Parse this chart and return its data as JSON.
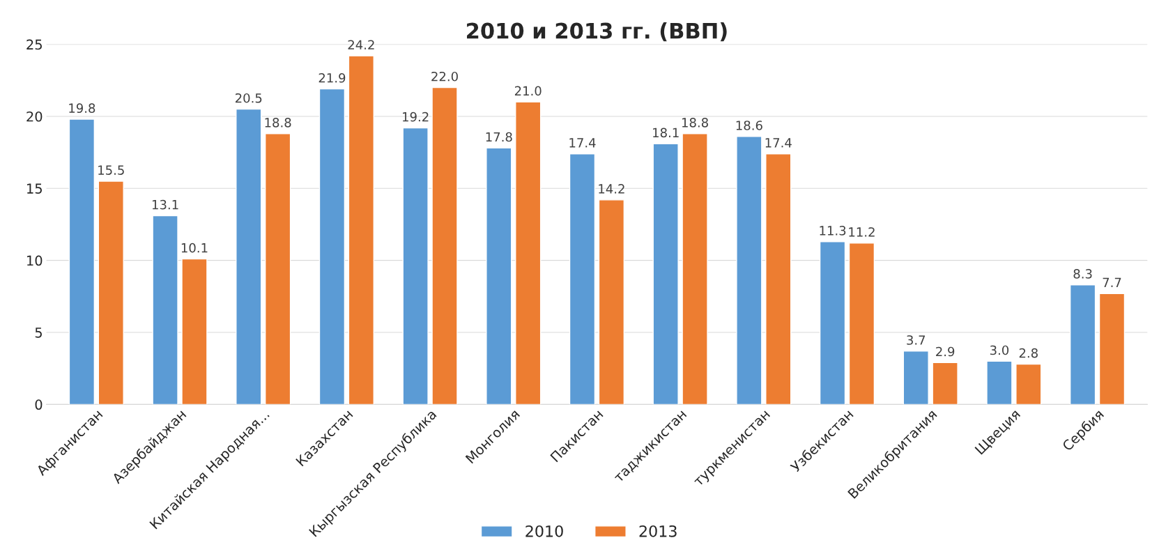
{
  "chart_data": {
    "type": "bar",
    "title": "2010 и 2013 гг. (ВВП)",
    "categories": [
      "Афганистан",
      "Азербайджан",
      "Китайская Народная...",
      "Казахстан",
      "Кыргызская Республика",
      "Монголия",
      "Пакистан",
      "таджикистан",
      "туркменистан",
      "Узбекистан",
      "Великобритания",
      "Щвеция",
      "Сербия"
    ],
    "series": [
      {
        "name": "2010",
        "color": "#5b9bd5",
        "values": [
          19.8,
          13.1,
          20.5,
          21.9,
          19.2,
          17.8,
          17.4,
          18.1,
          18.6,
          11.3,
          3.7,
          3.0,
          8.3
        ],
        "value_labels": [
          "19.8",
          "13.1",
          "20.5",
          "21.9",
          "19.2",
          "17.8",
          "17.4",
          "18.1",
          "18.6",
          "11.3",
          "3.7",
          "3.0",
          "8.3"
        ]
      },
      {
        "name": "2013",
        "color": "#ed7d31",
        "values": [
          15.5,
          10.1,
          18.8,
          24.2,
          22.0,
          21.0,
          14.2,
          18.8,
          17.4,
          11.2,
          2.9,
          2.8,
          7.7
        ],
        "value_labels": [
          "15.5",
          "10.1",
          "18.8",
          "24.2",
          "22.0",
          "21.0",
          "14.2",
          "18.8",
          "17.4",
          "11.2",
          "2.9",
          "2.8",
          "7.7"
        ]
      }
    ],
    "ylim": [
      0,
      25
    ],
    "yticks": [
      0,
      5,
      10,
      15,
      20,
      25
    ],
    "grid": "y",
    "legend": "bottom"
  }
}
